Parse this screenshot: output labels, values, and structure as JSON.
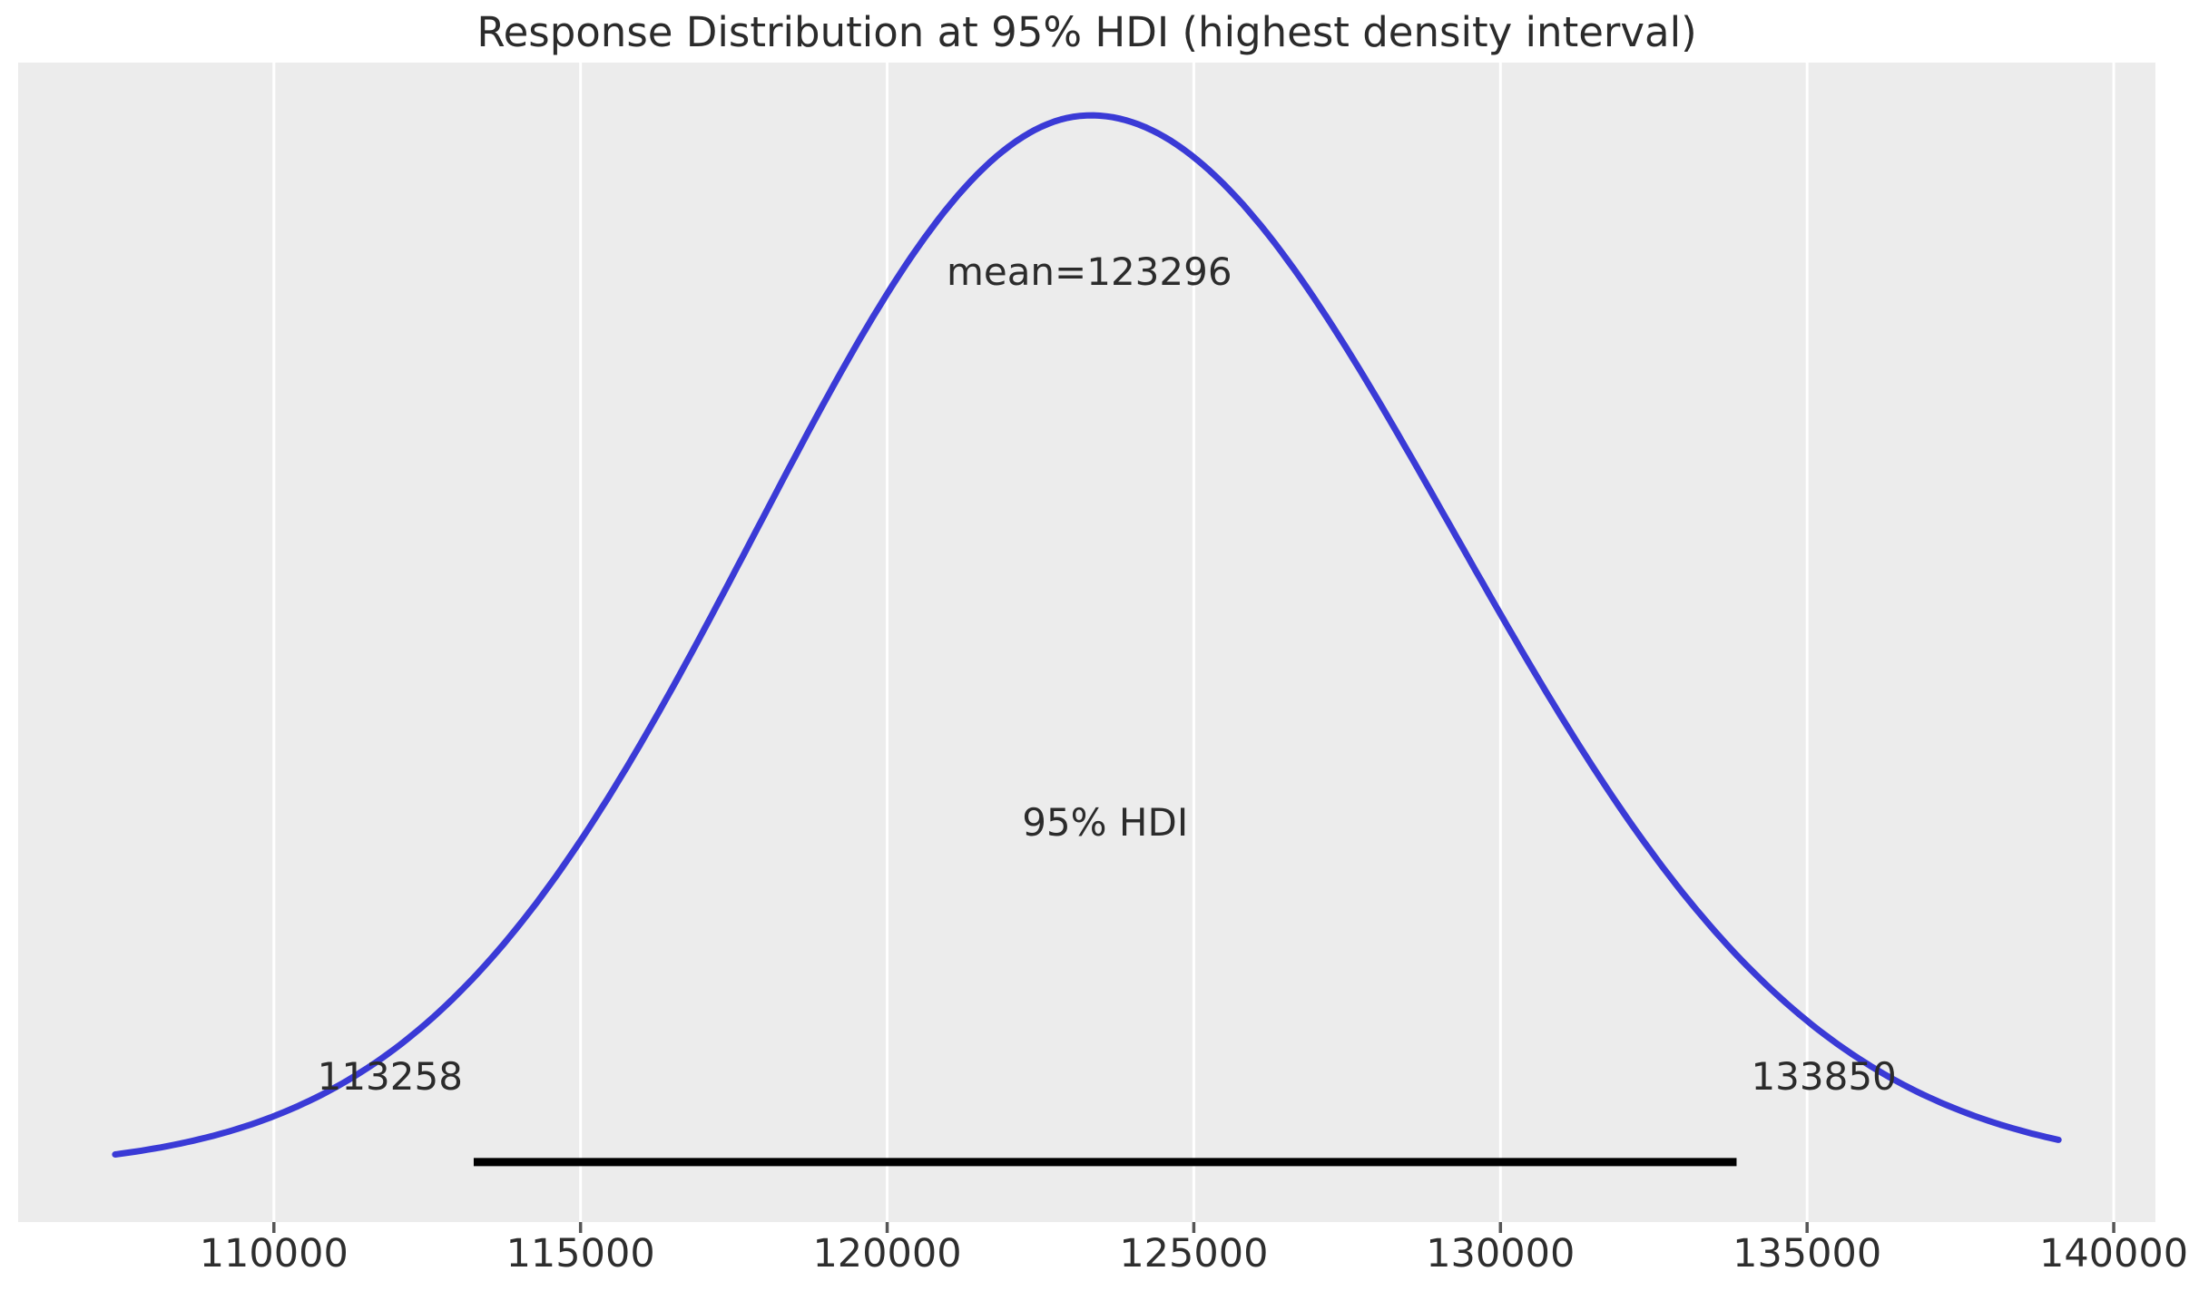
{
  "chart_data": {
    "type": "line",
    "title": "Response Distribution at 95% HDI (highest density interval)",
    "xlabel": "",
    "ylabel": "",
    "xlim": [
      105830,
      140680
    ],
    "x_ticks": [
      110000,
      115000,
      120000,
      125000,
      130000,
      135000,
      140000
    ],
    "x_tick_labels": [
      "110000",
      "115000",
      "120000",
      "125000",
      "130000",
      "135000",
      "140000"
    ],
    "grid": "vertical-only",
    "legend": "none",
    "mean": 123296,
    "mean_label": "mean=123296",
    "hdi": {
      "probability": "95%",
      "label": "95% HDI",
      "lower": 113258,
      "upper": 133850,
      "lower_label": "113258",
      "upper_label": "133850"
    },
    "kde_curve": {
      "description": "posterior density curve, unit-normalized peak",
      "mode": 123320,
      "sigma_left": 5450,
      "sigma_right": 5900,
      "x_start": 107412,
      "x_end": 139100,
      "peak_density_rel": 1.0,
      "ylim_rel": [
        -0.05,
        1.05
      ]
    },
    "colors": {
      "curve": "#3a3ad6",
      "hdi_line": "#000000",
      "plot_background": "#ececec",
      "grid": "#ffffff",
      "tick_mark": "#555555",
      "text": "#2b2b2b",
      "figure_background": "#ffffff"
    }
  }
}
